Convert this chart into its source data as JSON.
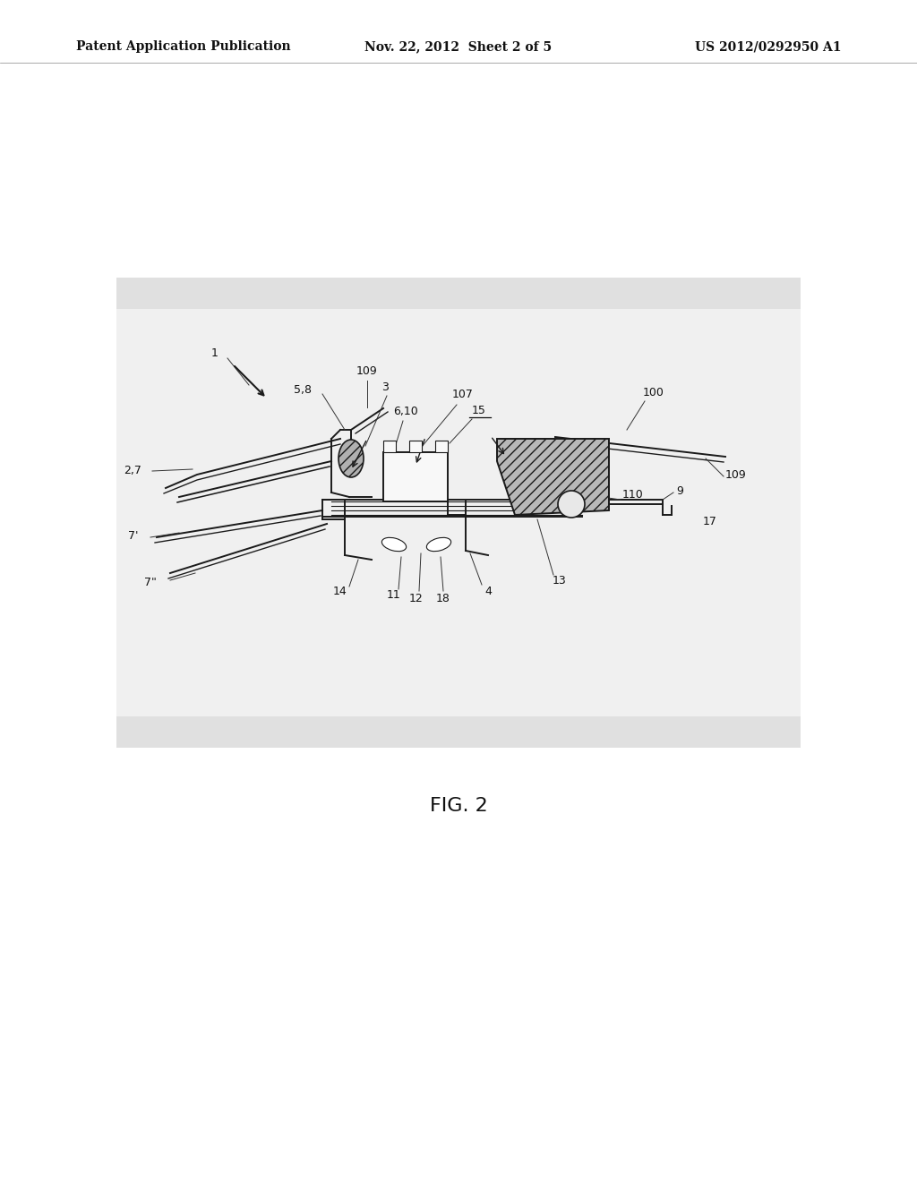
{
  "background_color": "#ffffff",
  "gray_bg": "#e8e8e8",
  "header_text_left": "Patent Application Publication",
  "header_text_mid": "Nov. 22, 2012  Sheet 2 of 5",
  "header_text_right": "US 2012/0292950 A1",
  "fig_label": "FIG. 2",
  "header_fontsize": 10,
  "label_fontsize": 9,
  "fig_label_fontsize": 16,
  "col": "#1a1a1a"
}
